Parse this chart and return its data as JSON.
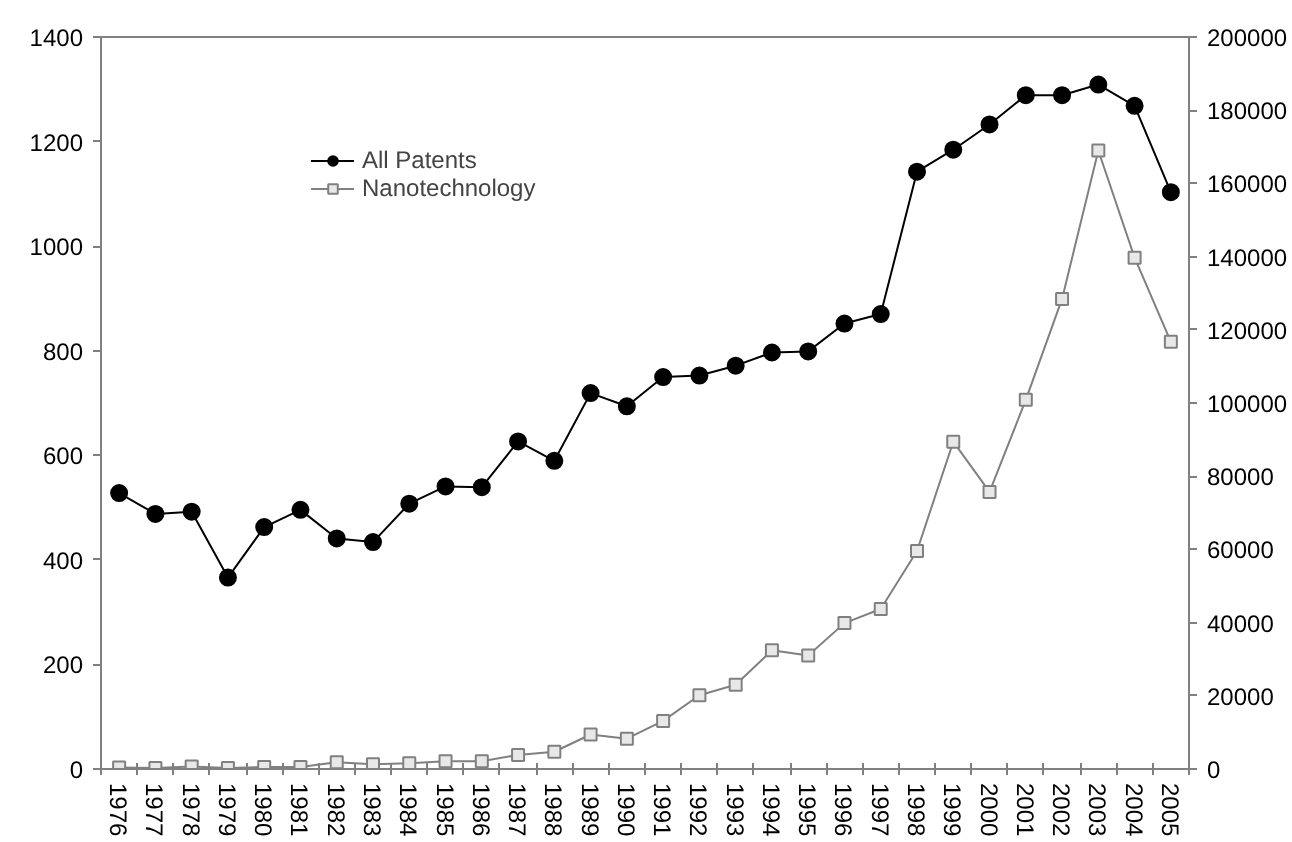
{
  "chart_data": {
    "type": "line",
    "categories": [
      "1976",
      "1977",
      "1978",
      "1979",
      "1980",
      "1981",
      "1982",
      "1983",
      "1984",
      "1985",
      "1986",
      "1987",
      "1988",
      "1989",
      "1990",
      "1991",
      "1992",
      "1993",
      "1994",
      "1995",
      "1996",
      "1997",
      "1998",
      "1999",
      "2000",
      "2001",
      "2002",
      "2003",
      "2004",
      "2005"
    ],
    "ylim": [
      0,
      1400
    ],
    "yticks": [
      0,
      200,
      400,
      600,
      800,
      1000,
      1200,
      1400
    ],
    "y2lim": [
      0,
      200000
    ],
    "y2ticks": [
      0,
      20000,
      40000,
      60000,
      80000,
      100000,
      120000,
      140000,
      160000,
      180000,
      200000
    ],
    "grid": false,
    "legend": "top left",
    "series": [
      {
        "name": "All Patents",
        "color": "#000000",
        "marker": "circle",
        "axis": "y2",
        "values": [
          75400,
          69700,
          70300,
          52300,
          66100,
          70800,
          63000,
          62000,
          72500,
          77200,
          77000,
          89500,
          84200,
          102700,
          99100,
          107100,
          107500,
          110200,
          113800,
          114100,
          121700,
          124300,
          163200,
          169200,
          176100,
          184100,
          184100,
          187000,
          181200,
          157600
        ]
      },
      {
        "name": "Nanotechnology",
        "color": "#808080",
        "marker": "square",
        "values": [
          3,
          2,
          5,
          2,
          4,
          4,
          13,
          9,
          11,
          15,
          15,
          27,
          33,
          66,
          58,
          92,
          141,
          161,
          227,
          217,
          279,
          306,
          417,
          626,
          530,
          706,
          899,
          1183,
          978,
          817
        ]
      }
    ]
  }
}
